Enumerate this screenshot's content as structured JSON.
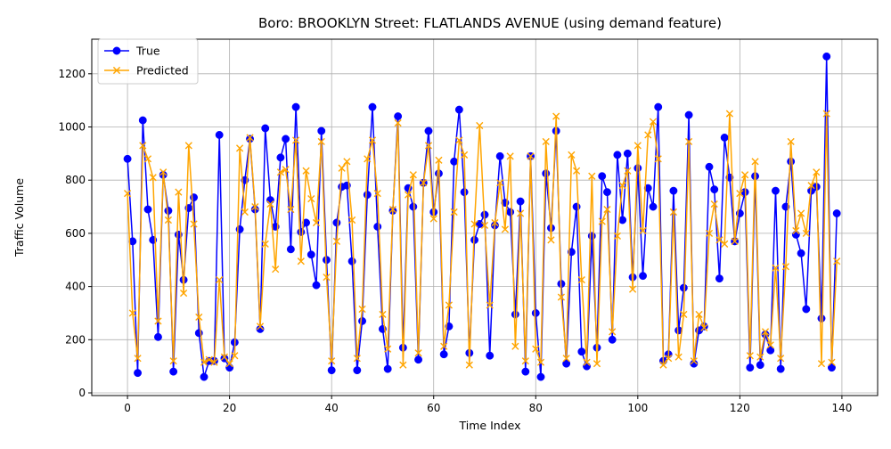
{
  "chart_data": {
    "type": "line",
    "title": "Boro: BROOKLYN Street: FLATLANDS AVENUE (using demand feature)",
    "xlabel": "Time Index",
    "ylabel": "Traffic Volume",
    "xlim": [
      -7,
      147
    ],
    "ylim": [
      -10,
      1330
    ],
    "x_ticks": [
      0,
      20,
      40,
      60,
      80,
      100,
      120,
      140
    ],
    "y_ticks": [
      0,
      200,
      400,
      600,
      800,
      1000,
      1200
    ],
    "grid": true,
    "legend_position": "top-left",
    "x": [
      0,
      1,
      2,
      3,
      4,
      5,
      6,
      7,
      8,
      9,
      10,
      11,
      12,
      13,
      14,
      15,
      16,
      17,
      18,
      19,
      20,
      21,
      22,
      23,
      24,
      25,
      26,
      27,
      28,
      29,
      30,
      31,
      32,
      33,
      34,
      35,
      36,
      37,
      38,
      39,
      40,
      41,
      42,
      43,
      44,
      45,
      46,
      47,
      48,
      49,
      50,
      51,
      52,
      53,
      54,
      55,
      56,
      57,
      58,
      59,
      60,
      61,
      62,
      63,
      64,
      65,
      66,
      67,
      68,
      69,
      70,
      71,
      72,
      73,
      74,
      75,
      76,
      77,
      78,
      79,
      80,
      81,
      82,
      83,
      84,
      85,
      86,
      87,
      88,
      89,
      90,
      91,
      92,
      93,
      94,
      95,
      96,
      97,
      98,
      99,
      100,
      101,
      102,
      103,
      104,
      105,
      106,
      107,
      108,
      109,
      110,
      111,
      112,
      113,
      114,
      115,
      116,
      117,
      118,
      119,
      120,
      121,
      122,
      123,
      124,
      125,
      126,
      127,
      128,
      129,
      130,
      131,
      132,
      133,
      134,
      135,
      136,
      137,
      138,
      139
    ],
    "series": [
      {
        "name": "True",
        "color": "#0000ff",
        "marker": "circle",
        "values": [
          880,
          570,
          75,
          1025,
          690,
          575,
          210,
          820,
          685,
          80,
          595,
          425,
          695,
          735,
          225,
          60,
          120,
          120,
          970,
          130,
          95,
          190,
          615,
          800,
          955,
          690,
          240,
          995,
          725,
          625,
          885,
          955,
          540,
          1075,
          605,
          640,
          520,
          405,
          985,
          500,
          85,
          640,
          775,
          780,
          495,
          85,
          270,
          745,
          1075,
          625,
          240,
          90,
          685,
          1040,
          170,
          770,
          700,
          125,
          790,
          985,
          680,
          825,
          145,
          250,
          870,
          1065,
          755,
          150,
          575,
          635,
          670,
          140,
          630,
          890,
          715,
          680,
          295,
          720,
          80,
          890,
          300,
          60,
          825,
          620,
          985,
          410,
          110,
          530,
          700,
          155,
          100,
          590,
          170,
          815,
          755,
          200,
          895,
          650,
          900,
          435,
          845,
          440,
          770,
          700,
          1075,
          120,
          145,
          760,
          235,
          395,
          1045,
          110,
          235,
          250,
          850,
          765,
          430,
          960,
          810,
          570,
          675,
          755,
          95,
          815,
          105,
          220,
          160,
          760,
          90,
          700,
          870,
          595,
          525,
          315,
          760,
          775,
          280,
          1265,
          95,
          675
        ]
      },
      {
        "name": "Predicted",
        "color": "#ffa500",
        "marker": "x",
        "values": [
          750,
          300,
          130,
          930,
          880,
          810,
          270,
          830,
          650,
          120,
          755,
          375,
          930,
          635,
          285,
          115,
          125,
          115,
          425,
          135,
          110,
          140,
          920,
          680,
          960,
          700,
          250,
          560,
          710,
          465,
          830,
          840,
          690,
          950,
          495,
          835,
          730,
          640,
          945,
          435,
          120,
          570,
          845,
          870,
          650,
          130,
          315,
          880,
          950,
          750,
          295,
          165,
          690,
          1015,
          105,
          745,
          820,
          150,
          790,
          930,
          655,
          875,
          175,
          330,
          680,
          950,
          895,
          105,
          635,
          1005,
          630,
          330,
          640,
          790,
          615,
          890,
          175,
          675,
          120,
          890,
          165,
          115,
          945,
          575,
          1040,
          360,
          130,
          895,
          835,
          425,
          115,
          815,
          110,
          645,
          690,
          230,
          590,
          780,
          835,
          390,
          930,
          610,
          970,
          1020,
          880,
          105,
          130,
          680,
          135,
          295,
          945,
          120,
          295,
          245,
          600,
          710,
          575,
          560,
          1050,
          570,
          750,
          820,
          140,
          870,
          135,
          230,
          180,
          470,
          130,
          475,
          945,
          610,
          675,
          600,
          780,
          830,
          110,
          1050,
          115,
          495
        ]
      }
    ]
  }
}
